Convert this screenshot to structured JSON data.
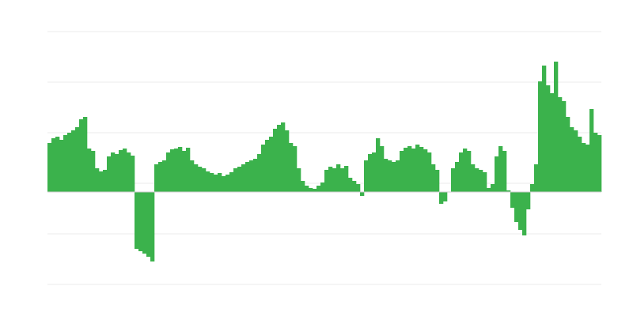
{
  "chart_data": {
    "type": "bar",
    "color": "#3bb24c",
    "grid": true,
    "ylim": [
      -117,
      203
    ],
    "yticks": [
      -117,
      -53,
      11,
      75,
      139,
      203
    ],
    "values": [
      62,
      68,
      70,
      66,
      72,
      75,
      78,
      82,
      92,
      95,
      55,
      52,
      30,
      26,
      28,
      45,
      50,
      48,
      53,
      55,
      50,
      46,
      -72,
      -75,
      -78,
      -82,
      -88,
      35,
      38,
      40,
      50,
      54,
      55,
      57,
      52,
      56,
      40,
      35,
      32,
      30,
      26,
      24,
      22,
      24,
      20,
      22,
      25,
      30,
      32,
      35,
      38,
      40,
      42,
      48,
      60,
      66,
      70,
      80,
      85,
      88,
      78,
      62,
      58,
      30,
      14,
      8,
      5,
      4,
      8,
      12,
      28,
      32,
      30,
      35,
      30,
      33,
      18,
      14,
      10,
      -5,
      40,
      48,
      50,
      68,
      58,
      42,
      40,
      38,
      40,
      52,
      56,
      58,
      55,
      60,
      57,
      54,
      50,
      35,
      28,
      -15,
      -12,
      0,
      30,
      38,
      50,
      55,
      52,
      35,
      30,
      28,
      25,
      5,
      10,
      45,
      58,
      52,
      2,
      -20,
      -38,
      -48,
      -55,
      -22,
      10,
      35,
      140,
      160,
      135,
      125,
      165,
      120,
      115,
      95,
      82,
      78,
      70,
      62,
      60,
      105,
      75,
      72
    ]
  }
}
